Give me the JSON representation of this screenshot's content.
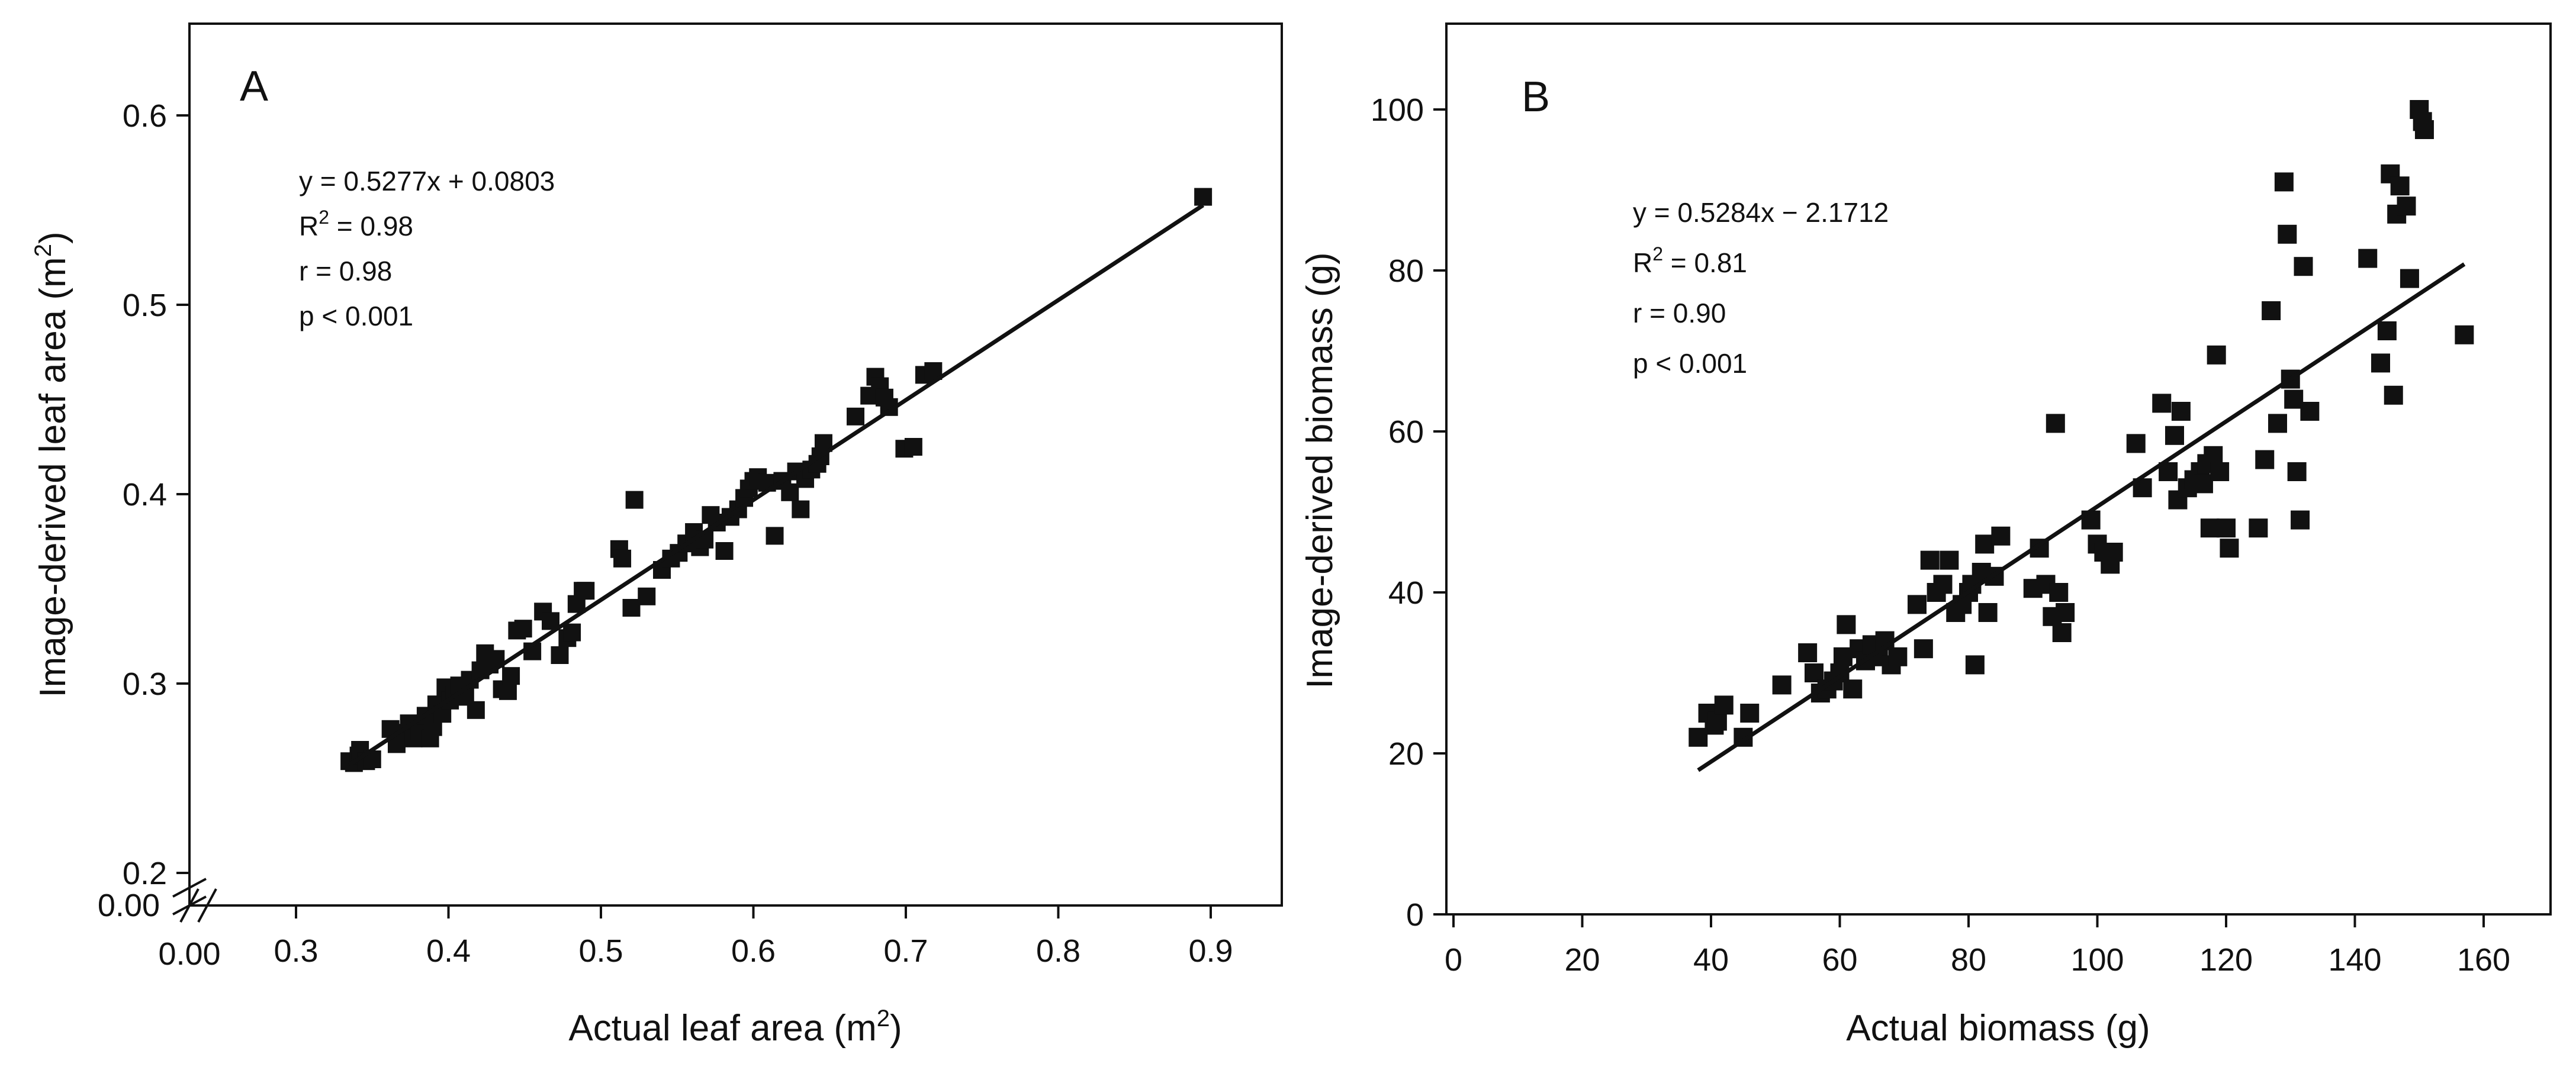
{
  "figure": {
    "colors": {
      "ink": "#111111",
      "background": "#ffffff"
    }
  },
  "chart_data": [
    {
      "type": "scatter",
      "panel": "A",
      "xlabel": "Actual leaf area (m2)",
      "xlabel_text": "Actual leaf area (m",
      "xlabel_sup": "2",
      "xlabel_close": ")",
      "ylabel": "Image-derived leaf area (m2)",
      "ylabel_text": "Image-derived leaf area (m",
      "ylabel_sup": "2",
      "ylabel_close": ")",
      "xlim": [
        0.25,
        0.95
      ],
      "ylim": [
        0.2,
        0.65
      ],
      "axis_break": true,
      "x_ticks": [
        0.3,
        0.4,
        0.5,
        0.6,
        0.7,
        0.8,
        0.9
      ],
      "x_tick_labels": [
        "0.3",
        "0.4",
        "0.5",
        "0.6",
        "0.7",
        "0.8",
        "0.9"
      ],
      "x_break_label": "0.00",
      "y_ticks": [
        0.2,
        0.3,
        0.4,
        0.5,
        0.6
      ],
      "y_tick_labels": [
        "0.2",
        "0.3",
        "0.4",
        "0.5",
        "0.6"
      ],
      "y_break_label": "0.00",
      "annotations": {
        "equation": "y = 0.5277x + 0.0803",
        "r2_label": "R",
        "r2_sup": "2",
        "r2_value": " = 0.98",
        "r": "r = 0.98",
        "p": "p < 0.001"
      },
      "regression": {
        "slope": 0.5277,
        "intercept": 0.0803,
        "x_range": [
          0.335,
          0.895
        ]
      },
      "points": [
        [
          0.335,
          0.259
        ],
        [
          0.338,
          0.258
        ],
        [
          0.341,
          0.262
        ],
        [
          0.342,
          0.265
        ],
        [
          0.346,
          0.259
        ],
        [
          0.35,
          0.26
        ],
        [
          0.362,
          0.276
        ],
        [
          0.366,
          0.268
        ],
        [
          0.37,
          0.274
        ],
        [
          0.374,
          0.279
        ],
        [
          0.377,
          0.271
        ],
        [
          0.381,
          0.275
        ],
        [
          0.385,
          0.283
        ],
        [
          0.388,
          0.271
        ],
        [
          0.39,
          0.277
        ],
        [
          0.392,
          0.289
        ],
        [
          0.396,
          0.284
        ],
        [
          0.398,
          0.298
        ],
        [
          0.401,
          0.291
        ],
        [
          0.404,
          0.294
        ],
        [
          0.407,
          0.299
        ],
        [
          0.411,
          0.293
        ],
        [
          0.414,
          0.302
        ],
        [
          0.418,
          0.286
        ],
        [
          0.421,
          0.307
        ],
        [
          0.424,
          0.316
        ],
        [
          0.427,
          0.31
        ],
        [
          0.431,
          0.313
        ],
        [
          0.435,
          0.297
        ],
        [
          0.439,
          0.296
        ],
        [
          0.441,
          0.304
        ],
        [
          0.445,
          0.328
        ],
        [
          0.449,
          0.329
        ],
        [
          0.455,
          0.317
        ],
        [
          0.462,
          0.338
        ],
        [
          0.467,
          0.333
        ],
        [
          0.473,
          0.315
        ],
        [
          0.478,
          0.324
        ],
        [
          0.481,
          0.327
        ],
        [
          0.484,
          0.342
        ],
        [
          0.488,
          0.349
        ],
        [
          0.49,
          0.349
        ],
        [
          0.512,
          0.371
        ],
        [
          0.514,
          0.366
        ],
        [
          0.52,
          0.34
        ],
        [
          0.522,
          0.397
        ],
        [
          0.53,
          0.346
        ],
        [
          0.54,
          0.36
        ],
        [
          0.546,
          0.366
        ],
        [
          0.551,
          0.369
        ],
        [
          0.556,
          0.374
        ],
        [
          0.561,
          0.38
        ],
        [
          0.565,
          0.372
        ],
        [
          0.568,
          0.376
        ],
        [
          0.572,
          0.389
        ],
        [
          0.576,
          0.385
        ],
        [
          0.581,
          0.37
        ],
        [
          0.585,
          0.388
        ],
        [
          0.59,
          0.392
        ],
        [
          0.594,
          0.398
        ],
        [
          0.597,
          0.403
        ],
        [
          0.6,
          0.407
        ],
        [
          0.603,
          0.409
        ],
        [
          0.609,
          0.406
        ],
        [
          0.614,
          0.378
        ],
        [
          0.619,
          0.407
        ],
        [
          0.624,
          0.401
        ],
        [
          0.628,
          0.412
        ],
        [
          0.631,
          0.392
        ],
        [
          0.634,
          0.408
        ],
        [
          0.638,
          0.413
        ],
        [
          0.642,
          0.416
        ],
        [
          0.644,
          0.42
        ],
        [
          0.646,
          0.427
        ],
        [
          0.667,
          0.441
        ],
        [
          0.676,
          0.452
        ],
        [
          0.68,
          0.462
        ],
        [
          0.683,
          0.457
        ],
        [
          0.686,
          0.451
        ],
        [
          0.689,
          0.446
        ],
        [
          0.699,
          0.424
        ],
        [
          0.705,
          0.425
        ],
        [
          0.712,
          0.463
        ],
        [
          0.718,
          0.465
        ],
        [
          0.895,
          0.557
        ]
      ]
    },
    {
      "type": "scatter",
      "panel": "B",
      "xlabel": "Actual biomass (g)",
      "ylabel": "Image-derived biomass (g)",
      "xlim": [
        0,
        170
      ],
      "ylim": [
        0,
        110
      ],
      "x_ticks": [
        0,
        20,
        40,
        60,
        80,
        100,
        120,
        140,
        160
      ],
      "x_tick_labels": [
        "0",
        "20",
        "40",
        "60",
        "80",
        "100",
        "120",
        "140",
        "160"
      ],
      "y_ticks": [
        0,
        20,
        40,
        60,
        80,
        100
      ],
      "y_tick_labels": [
        "0",
        "20",
        "40",
        "60",
        "80",
        "100"
      ],
      "annotations": {
        "equation": "y = 0.5284x − 2.1712",
        "r2_label": "R",
        "r2_sup": "2",
        "r2_value": " = 0.81",
        "r": "r = 0.90",
        "p": "p < 0.001"
      },
      "regression": {
        "slope": 0.5284,
        "intercept": -2.1712,
        "x_range": [
          38,
          157
        ]
      },
      "points": [
        [
          38,
          22
        ],
        [
          39.5,
          25
        ],
        [
          40.5,
          23.5
        ],
        [
          41,
          24
        ],
        [
          42,
          26
        ],
        [
          45,
          22
        ],
        [
          46,
          25
        ],
        [
          51,
          28.5
        ],
        [
          55,
          32.5
        ],
        [
          56,
          30
        ],
        [
          57,
          27.5
        ],
        [
          58,
          28
        ],
        [
          59,
          29
        ],
        [
          60,
          30
        ],
        [
          60.5,
          32
        ],
        [
          61,
          36
        ],
        [
          62,
          28
        ],
        [
          63,
          33
        ],
        [
          64,
          31.5
        ],
        [
          65,
          33.5
        ],
        [
          66,
          32
        ],
        [
          67,
          34
        ],
        [
          68,
          31
        ],
        [
          69,
          32
        ],
        [
          72,
          38.5
        ],
        [
          73,
          33
        ],
        [
          74,
          44
        ],
        [
          75,
          40
        ],
        [
          76,
          41
        ],
        [
          77,
          44
        ],
        [
          78,
          37.5
        ],
        [
          79,
          38.5
        ],
        [
          80,
          40
        ],
        [
          80.5,
          41
        ],
        [
          81,
          31
        ],
        [
          82,
          42.5
        ],
        [
          82.5,
          46
        ],
        [
          83,
          37.5
        ],
        [
          84,
          42
        ],
        [
          85,
          47
        ],
        [
          90,
          40.5
        ],
        [
          91,
          45.5
        ],
        [
          92,
          41
        ],
        [
          93,
          37
        ],
        [
          93.5,
          61
        ],
        [
          94,
          40
        ],
        [
          94.5,
          35
        ],
        [
          95,
          37.5
        ],
        [
          99,
          49
        ],
        [
          100,
          46
        ],
        [
          101,
          45
        ],
        [
          102,
          43.5
        ],
        [
          102.5,
          45
        ],
        [
          106,
          58.5
        ],
        [
          107,
          53
        ],
        [
          110,
          63.5
        ],
        [
          111,
          55
        ],
        [
          112,
          59.5
        ],
        [
          112.5,
          51.5
        ],
        [
          113,
          62.5
        ],
        [
          114,
          53
        ],
        [
          115,
          54
        ],
        [
          116,
          55
        ],
        [
          116.5,
          53.5
        ],
        [
          117,
          56
        ],
        [
          117.5,
          48
        ],
        [
          118,
          57
        ],
        [
          118.5,
          69.5
        ],
        [
          119,
          55
        ],
        [
          120,
          48
        ],
        [
          120.5,
          45.5
        ],
        [
          125,
          48
        ],
        [
          126,
          56.5
        ],
        [
          127,
          75
        ],
        [
          128,
          61
        ],
        [
          129,
          91
        ],
        [
          129.5,
          84.5
        ],
        [
          130,
          66.5
        ],
        [
          130.5,
          64
        ],
        [
          131,
          55
        ],
        [
          131.5,
          49
        ],
        [
          132,
          80.5
        ],
        [
          133,
          62.5
        ],
        [
          142,
          81.5
        ],
        [
          144,
          68.5
        ],
        [
          145,
          72.5
        ],
        [
          145.5,
          92
        ],
        [
          146,
          64.5
        ],
        [
          146.5,
          87
        ],
        [
          147,
          90.5
        ],
        [
          148,
          88
        ],
        [
          148.5,
          79
        ],
        [
          150,
          100
        ],
        [
          150.5,
          98.5
        ],
        [
          150.8,
          97.5
        ],
        [
          157,
          72
        ]
      ]
    }
  ]
}
